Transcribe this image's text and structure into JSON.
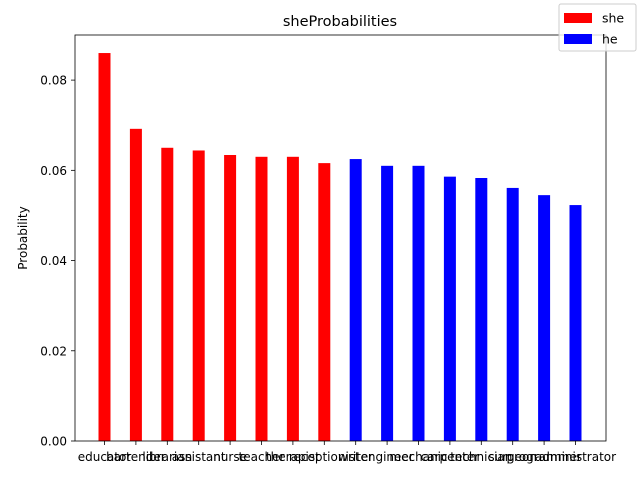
{
  "chart_data": {
    "type": "bar",
    "title": "sheProbabilities",
    "xlabel": "",
    "ylabel": "Probability",
    "ylim": [
      0,
      0.09
    ],
    "yticks": [
      0.0,
      0.02,
      0.04,
      0.06,
      0.08
    ],
    "yticks_labels": [
      "0.00",
      "0.02",
      "0.04",
      "0.06",
      "0.08"
    ],
    "grid": false,
    "legend_position": "top-right",
    "categories": [
      "educator",
      "bartender",
      "librarian",
      "assistant",
      "nurse",
      "teacher",
      "therapist",
      "receptionist",
      "writer",
      "engineer",
      "mechanic",
      "carpenter",
      "technician",
      "surgeon",
      "programmer",
      "administrator"
    ],
    "values": [
      0.086,
      0.0692,
      0.065,
      0.0644,
      0.0634,
      0.063,
      0.063,
      0.0616,
      0.0625,
      0.061,
      0.061,
      0.0586,
      0.0583,
      0.0561,
      0.0545,
      0.0523
    ],
    "bar_series": [
      "she",
      "she",
      "she",
      "she",
      "she",
      "she",
      "she",
      "she",
      "he",
      "he",
      "he",
      "he",
      "he",
      "he",
      "he",
      "he"
    ],
    "series": [
      {
        "name": "she",
        "color": "#ff0000"
      },
      {
        "name": "he",
        "color": "#0000ff"
      }
    ]
  }
}
